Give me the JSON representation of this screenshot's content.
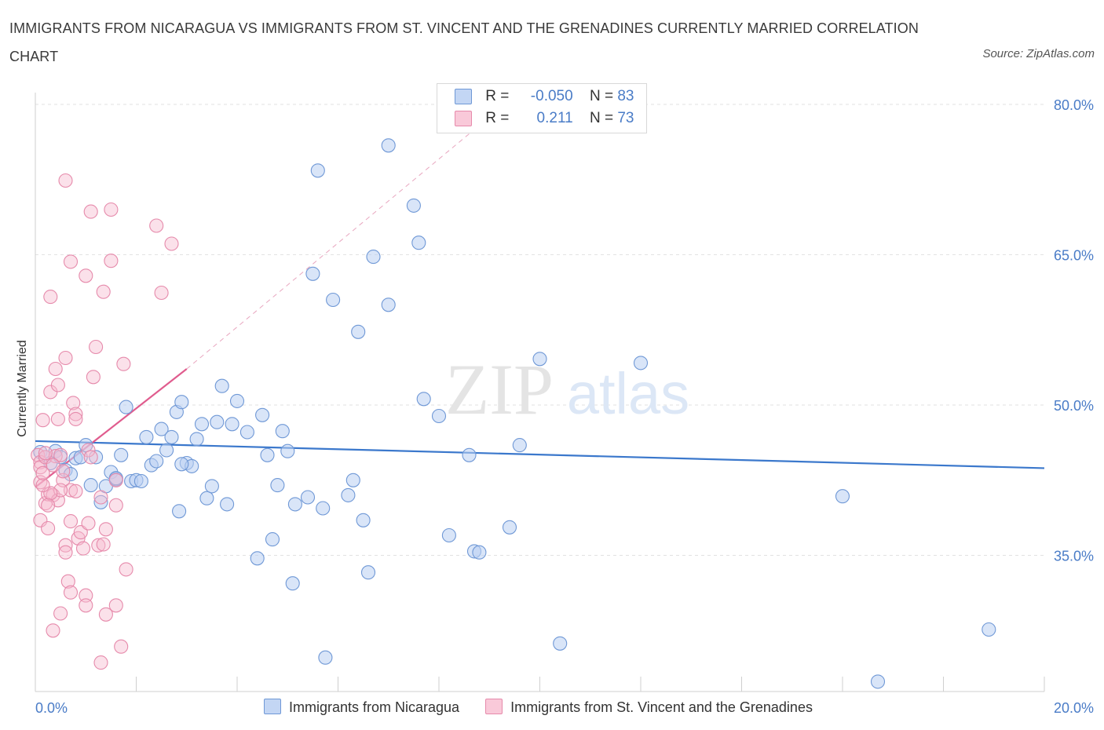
{
  "title": "IMMIGRANTS FROM NICARAGUA VS IMMIGRANTS FROM ST. VINCENT AND THE GRENADINES CURRENTLY MARRIED CORRELATION CHART",
  "source": "Source: ZipAtlas.com",
  "watermark": {
    "zip": "ZIP",
    "atlas": "atlas"
  },
  "colors": {
    "blue": "#4a7cc7",
    "blue_fill": "#b9d0f3",
    "pink": "#e05c8e",
    "pink_fill": "#f7bdd0"
  },
  "legend": {
    "rows": [
      {
        "r_label": "R =",
        "r_value": "-0.050",
        "n_label": "N =",
        "n_value": "83"
      },
      {
        "r_label": "R =",
        "r_value": "0.211",
        "n_label": "N =",
        "n_value": "73"
      }
    ]
  },
  "bottom_legend": [
    "Immigrants from Nicaragua",
    "Immigrants from St. Vincent and the Grenadines"
  ],
  "chart_data": {
    "type": "scatter",
    "ylabel": "Currently Married",
    "xlim": [
      0,
      20
    ],
    "ylim": [
      20,
      80
    ],
    "x_tick_labels": [
      {
        "x": 0,
        "label": "0.0%"
      },
      {
        "x": 20,
        "label": "20.0%"
      }
    ],
    "x_minor_ticks": [
      0,
      2,
      4,
      6,
      8,
      10,
      12,
      14,
      16,
      18,
      20
    ],
    "y_ticks": [
      {
        "y": 35,
        "label": "35.0%"
      },
      {
        "y": 50,
        "label": "50.0%"
      },
      {
        "y": 65,
        "label": "65.0%"
      },
      {
        "y": 80,
        "label": "80.0%"
      }
    ],
    "grid": true,
    "series": [
      {
        "name": "Immigrants from Nicaragua",
        "color": "#4a7cc7",
        "trend": {
          "x": [
            0,
            20
          ],
          "y": [
            46.4,
            43.7
          ]
        },
        "points": [
          [
            0.1,
            45.3
          ],
          [
            0.2,
            44.8
          ],
          [
            0.3,
            44.2
          ],
          [
            0.4,
            45.4
          ],
          [
            0.5,
            44.8
          ],
          [
            0.6,
            43.5
          ],
          [
            0.7,
            43.1
          ],
          [
            0.8,
            44.7
          ],
          [
            1.0,
            46.0
          ],
          [
            1.1,
            42.0
          ],
          [
            1.2,
            44.8
          ],
          [
            1.3,
            40.3
          ],
          [
            1.4,
            41.9
          ],
          [
            1.5,
            43.3
          ],
          [
            1.6,
            42.6
          ],
          [
            1.7,
            45.0
          ],
          [
            1.8,
            49.8
          ],
          [
            1.9,
            42.4
          ],
          [
            2.0,
            42.5
          ],
          [
            2.1,
            42.4
          ],
          [
            2.2,
            46.8
          ],
          [
            2.3,
            44.0
          ],
          [
            2.4,
            44.4
          ],
          [
            2.5,
            47.6
          ],
          [
            2.6,
            45.5
          ],
          [
            2.7,
            46.8
          ],
          [
            2.8,
            49.3
          ],
          [
            2.85,
            39.4
          ],
          [
            2.9,
            50.3
          ],
          [
            3.0,
            44.2
          ],
          [
            3.1,
            43.9
          ],
          [
            3.2,
            46.6
          ],
          [
            3.3,
            48.1
          ],
          [
            3.4,
            40.7
          ],
          [
            3.5,
            41.9
          ],
          [
            3.6,
            48.3
          ],
          [
            3.7,
            51.9
          ],
          [
            3.8,
            40.1
          ],
          [
            3.9,
            48.1
          ],
          [
            4.0,
            50.4
          ],
          [
            4.2,
            47.3
          ],
          [
            4.4,
            34.7
          ],
          [
            4.5,
            49.0
          ],
          [
            4.6,
            45.0
          ],
          [
            4.7,
            36.6
          ],
          [
            4.8,
            42.0
          ],
          [
            4.9,
            47.4
          ],
          [
            5.0,
            45.4
          ],
          [
            5.1,
            32.2
          ],
          [
            5.15,
            40.1
          ],
          [
            5.4,
            40.8
          ],
          [
            5.5,
            63.1
          ],
          [
            5.6,
            73.4
          ],
          [
            5.7,
            39.7
          ],
          [
            5.75,
            24.8
          ],
          [
            5.9,
            60.5
          ],
          [
            6.2,
            41.0
          ],
          [
            6.3,
            42.5
          ],
          [
            6.4,
            57.3
          ],
          [
            6.5,
            38.5
          ],
          [
            6.6,
            33.3
          ],
          [
            6.7,
            64.8
          ],
          [
            7.0,
            60.0
          ],
          [
            7.0,
            75.9
          ],
          [
            7.5,
            69.9
          ],
          [
            7.6,
            66.2
          ],
          [
            7.7,
            50.6
          ],
          [
            8.0,
            48.9
          ],
          [
            8.2,
            37.0
          ],
          [
            8.6,
            45.0
          ],
          [
            8.7,
            35.4
          ],
          [
            8.8,
            35.3
          ],
          [
            9.4,
            37.8
          ],
          [
            9.6,
            46.0
          ],
          [
            10.0,
            54.6
          ],
          [
            10.4,
            26.2
          ],
          [
            12.0,
            54.2
          ],
          [
            16.0,
            40.9
          ],
          [
            16.7,
            22.4
          ],
          [
            18.9,
            27.6
          ],
          [
            1.6,
            42.7
          ],
          [
            2.9,
            44.1
          ],
          [
            0.9,
            44.8
          ]
        ]
      },
      {
        "name": "Immigrants from St. Vincent and the Grenadines",
        "color": "#e05c8e",
        "trend": {
          "x": [
            0,
            3
          ],
          "y": [
            41.8,
            53.6
          ]
        },
        "trend_ext": {
          "x": [
            3,
            9.3
          ],
          "y": [
            53.6,
            80
          ]
        },
        "points": [
          [
            0.05,
            45.0
          ],
          [
            0.1,
            44.3
          ],
          [
            0.1,
            42.3
          ],
          [
            0.1,
            38.5
          ],
          [
            0.1,
            43.8
          ],
          [
            0.15,
            48.5
          ],
          [
            0.2,
            40.2
          ],
          [
            0.2,
            44.8
          ],
          [
            0.25,
            41.1
          ],
          [
            0.25,
            37.7
          ],
          [
            0.3,
            51.3
          ],
          [
            0.3,
            60.8
          ],
          [
            0.35,
            41.0
          ],
          [
            0.35,
            27.5
          ],
          [
            0.4,
            53.6
          ],
          [
            0.4,
            44.9
          ],
          [
            0.45,
            52.0
          ],
          [
            0.45,
            48.6
          ],
          [
            0.5,
            45.0
          ],
          [
            0.5,
            29.2
          ],
          [
            0.55,
            42.5
          ],
          [
            0.6,
            54.7
          ],
          [
            0.6,
            72.4
          ],
          [
            0.6,
            36.0
          ],
          [
            0.6,
            35.3
          ],
          [
            0.65,
            32.4
          ],
          [
            0.7,
            64.3
          ],
          [
            0.7,
            38.4
          ],
          [
            0.7,
            31.3
          ],
          [
            0.7,
            41.5
          ],
          [
            0.75,
            50.2
          ],
          [
            0.8,
            49.1
          ],
          [
            0.8,
            48.6
          ],
          [
            0.8,
            41.4
          ],
          [
            0.85,
            36.7
          ],
          [
            0.9,
            37.3
          ],
          [
            0.95,
            35.7
          ],
          [
            1.0,
            31.0
          ],
          [
            1.0,
            30.0
          ],
          [
            1.0,
            62.9
          ],
          [
            1.05,
            45.5
          ],
          [
            1.1,
            69.3
          ],
          [
            1.15,
            52.8
          ],
          [
            1.2,
            55.8
          ],
          [
            1.25,
            36.0
          ],
          [
            1.3,
            40.8
          ],
          [
            1.3,
            24.3
          ],
          [
            1.35,
            36.1
          ],
          [
            1.35,
            61.3
          ],
          [
            1.4,
            37.6
          ],
          [
            1.4,
            29.1
          ],
          [
            1.5,
            69.5
          ],
          [
            1.5,
            64.4
          ],
          [
            1.6,
            40.0
          ],
          [
            1.6,
            30.0
          ],
          [
            1.7,
            25.9
          ],
          [
            1.75,
            54.1
          ],
          [
            1.8,
            33.6
          ],
          [
            2.4,
            67.9
          ],
          [
            2.5,
            61.2
          ],
          [
            2.7,
            66.1
          ],
          [
            0.45,
            40.5
          ],
          [
            0.5,
            41.5
          ],
          [
            0.35,
            44.0
          ],
          [
            0.3,
            41.2
          ],
          [
            0.55,
            43.4
          ],
          [
            0.2,
            45.2
          ],
          [
            0.15,
            42.0
          ],
          [
            0.15,
            43.2
          ],
          [
            1.05,
            38.2
          ],
          [
            0.25,
            40.0
          ],
          [
            1.1,
            44.8
          ],
          [
            1.6,
            42.5
          ]
        ]
      }
    ]
  }
}
